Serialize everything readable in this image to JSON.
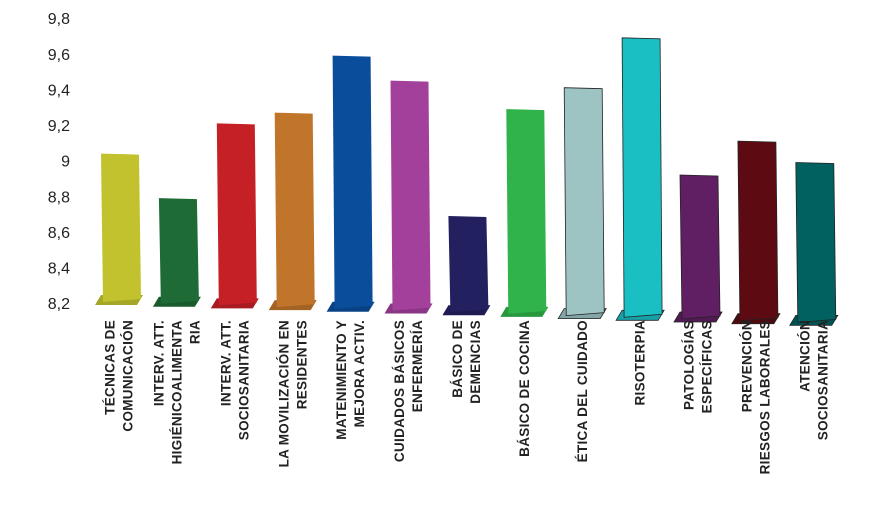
{
  "chart_data": {
    "type": "bar",
    "categories": [
      [
        "TÉCNICAS DE",
        "COMUNICACIÓN"
      ],
      [
        "INTERV. ATT.",
        "HIGIÉNICOALIMENTA",
        "RIA"
      ],
      [
        "INTERV. ATT.",
        "SOCIOSANITARIA"
      ],
      [
        "LA MOVILIZACIÓN EN",
        "RESIDENTES"
      ],
      [
        "MATENIMIENTO Y",
        "MEJORA ACTIV."
      ],
      [
        "CUIDADOS BÁSICOS",
        "ENFERMERÍA"
      ],
      [
        "BÁSICO DE",
        "DEMENCIAS"
      ],
      [
        "BÁSICO DE COCINA"
      ],
      [
        "ÉTICA DEL CUIDADO"
      ],
      [
        "RISOTERPIA"
      ],
      [
        "PATOLOGÍAS",
        "ESPECÍFICAS"
      ],
      [
        "PREVENCIÓN",
        "RIESGOS LABORALES"
      ],
      [
        "ATENCIÓN",
        "SOCIOSANITARIA"
      ]
    ],
    "values": [
      9.05,
      8.8,
      9.22,
      9.28,
      9.6,
      9.46,
      8.7,
      9.3,
      9.42,
      9.7,
      8.93,
      9.12,
      9.0
    ],
    "colors": [
      "#c2c22e",
      "#1e6b35",
      "#c62027",
      "#c0752a",
      "#0a4e9b",
      "#a3409b",
      "#22205f",
      "#2fb34a",
      "#9dc3c3",
      "#1abfc4",
      "#5f1f62",
      "#5e0a12",
      "#006160"
    ],
    "ylim": [
      8.2,
      9.8
    ],
    "yticks": [
      {
        "value": 8.2,
        "label": "8,2"
      },
      {
        "value": 8.4,
        "label": "8,4"
      },
      {
        "value": 8.6,
        "label": "8,6"
      },
      {
        "value": 8.8,
        "label": "8,8"
      },
      9,
      {
        "value": 9.2,
        "label": "9,2"
      },
      {
        "value": 9.4,
        "label": "9,4"
      },
      {
        "value": 9.6,
        "label": "9,6"
      },
      {
        "value": 9.8,
        "label": "9,8"
      }
    ]
  }
}
